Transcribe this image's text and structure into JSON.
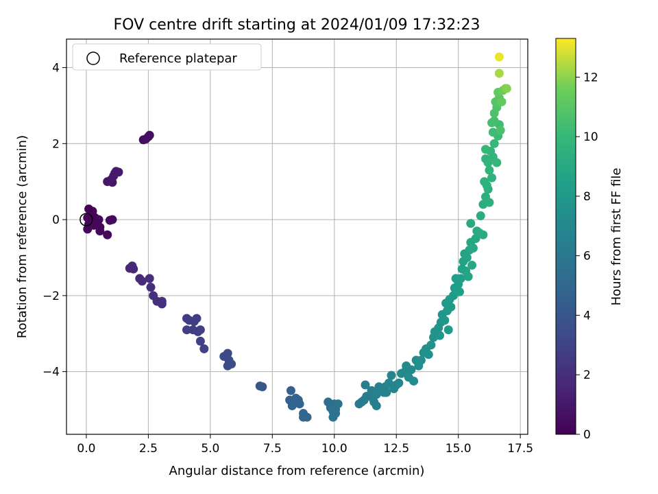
{
  "chart_data": {
    "type": "scatter",
    "title": "FOV centre drift starting at 2024/01/09 17:32:23",
    "xlabel": "Angular distance from reference (arcmin)",
    "ylabel": "Rotation from reference (arcmin)",
    "xlim": [
      -0.8,
      17.8
    ],
    "ylim": [
      -5.65,
      4.75
    ],
    "xticks": [
      0.0,
      2.5,
      5.0,
      7.5,
      10.0,
      12.5,
      15.0,
      17.5
    ],
    "xtick_labels": [
      "0.0",
      "2.5",
      "5.0",
      "7.5",
      "10.0",
      "12.5",
      "15.0",
      "17.5"
    ],
    "yticks": [
      -4,
      -2,
      0,
      2,
      4
    ],
    "ytick_labels": [
      "−4",
      "−2",
      "0",
      "2",
      "4"
    ],
    "grid": true,
    "legend": {
      "placement": "top-left",
      "entries": [
        "Reference platepar"
      ]
    },
    "reference_point": {
      "x": 0.0,
      "y": 0.0
    },
    "colorbar": {
      "label": "Hours from first FF file",
      "range": [
        0,
        13.3
      ],
      "ticks": [
        0,
        2,
        4,
        6,
        8,
        10,
        12
      ],
      "tick_labels": [
        "0",
        "2",
        "4",
        "6",
        "8",
        "10",
        "12"
      ],
      "colormap": "viridis"
    },
    "points": [
      {
        "x": 0.1,
        "y": 0.28,
        "c": 0.05
      },
      {
        "x": 0.25,
        "y": 0.22,
        "c": 0.08
      },
      {
        "x": 0.05,
        "y": 0.05,
        "c": 0.1
      },
      {
        "x": 0.2,
        "y": 0.0,
        "c": 0.12
      },
      {
        "x": 0.35,
        "y": 0.05,
        "c": 0.15
      },
      {
        "x": 0.45,
        "y": -0.02,
        "c": 0.18
      },
      {
        "x": 0.1,
        "y": -0.12,
        "c": 0.2
      },
      {
        "x": 0.05,
        "y": -0.25,
        "c": 0.22
      },
      {
        "x": 0.3,
        "y": -0.15,
        "c": 0.25
      },
      {
        "x": 0.5,
        "y": 0.0,
        "c": 0.28
      },
      {
        "x": 0.55,
        "y": -0.2,
        "c": 0.3
      },
      {
        "x": 0.55,
        "y": -0.3,
        "c": 0.32
      },
      {
        "x": 0.85,
        "y": -0.4,
        "c": 0.35
      },
      {
        "x": 0.95,
        "y": -0.02,
        "c": 0.38
      },
      {
        "x": 1.05,
        "y": 0.0,
        "c": 0.4
      },
      {
        "x": 2.3,
        "y": 2.1,
        "c": 0.5
      },
      {
        "x": 2.4,
        "y": 2.12,
        "c": 0.55
      },
      {
        "x": 2.5,
        "y": 2.18,
        "c": 0.6
      },
      {
        "x": 2.55,
        "y": 2.22,
        "c": 0.62
      },
      {
        "x": 0.85,
        "y": 1.0,
        "c": 0.9
      },
      {
        "x": 1.0,
        "y": 1.05,
        "c": 0.95
      },
      {
        "x": 1.05,
        "y": 0.98,
        "c": 1.0
      },
      {
        "x": 1.1,
        "y": 1.15,
        "c": 1.05
      },
      {
        "x": 1.2,
        "y": 1.27,
        "c": 1.1
      },
      {
        "x": 1.3,
        "y": 1.25,
        "c": 1.15
      },
      {
        "x": 1.15,
        "y": 1.22,
        "c": 1.12
      },
      {
        "x": 1.75,
        "y": -1.28,
        "c": 1.6
      },
      {
        "x": 1.85,
        "y": -1.22,
        "c": 1.65
      },
      {
        "x": 1.9,
        "y": -1.3,
        "c": 1.7
      },
      {
        "x": 2.15,
        "y": -1.55,
        "c": 1.8
      },
      {
        "x": 2.25,
        "y": -1.62,
        "c": 1.85
      },
      {
        "x": 2.55,
        "y": -1.55,
        "c": 1.9
      },
      {
        "x": 2.6,
        "y": -1.78,
        "c": 1.95
      },
      {
        "x": 2.7,
        "y": -2.0,
        "c": 2.0
      },
      {
        "x": 2.85,
        "y": -2.15,
        "c": 2.05
      },
      {
        "x": 3.05,
        "y": -2.15,
        "c": 2.1
      },
      {
        "x": 3.05,
        "y": -2.22,
        "c": 2.12
      },
      {
        "x": 4.05,
        "y": -2.6,
        "c": 2.6
      },
      {
        "x": 4.15,
        "y": -2.65,
        "c": 2.65
      },
      {
        "x": 4.35,
        "y": -2.68,
        "c": 2.7
      },
      {
        "x": 4.45,
        "y": -2.6,
        "c": 2.72
      },
      {
        "x": 4.05,
        "y": -2.9,
        "c": 2.75
      },
      {
        "x": 4.3,
        "y": -2.9,
        "c": 2.8
      },
      {
        "x": 4.5,
        "y": -2.95,
        "c": 2.82
      },
      {
        "x": 4.6,
        "y": -2.9,
        "c": 2.85
      },
      {
        "x": 4.6,
        "y": -3.2,
        "c": 2.9
      },
      {
        "x": 4.75,
        "y": -3.4,
        "c": 2.95
      },
      {
        "x": 5.55,
        "y": -3.6,
        "c": 3.3
      },
      {
        "x": 5.7,
        "y": -3.52,
        "c": 3.35
      },
      {
        "x": 5.75,
        "y": -3.7,
        "c": 3.4
      },
      {
        "x": 5.7,
        "y": -3.85,
        "c": 3.42
      },
      {
        "x": 5.85,
        "y": -3.8,
        "c": 3.45
      },
      {
        "x": 7.0,
        "y": -4.38,
        "c": 4.0
      },
      {
        "x": 7.1,
        "y": -4.4,
        "c": 4.05
      },
      {
        "x": 8.25,
        "y": -4.5,
        "c": 4.6
      },
      {
        "x": 8.2,
        "y": -4.75,
        "c": 4.65
      },
      {
        "x": 8.3,
        "y": -4.9,
        "c": 4.7
      },
      {
        "x": 8.45,
        "y": -4.7,
        "c": 4.75
      },
      {
        "x": 8.55,
        "y": -4.75,
        "c": 4.8
      },
      {
        "x": 8.6,
        "y": -4.85,
        "c": 4.82
      },
      {
        "x": 8.75,
        "y": -5.1,
        "c": 4.9
      },
      {
        "x": 8.9,
        "y": -5.2,
        "c": 4.95
      },
      {
        "x": 8.75,
        "y": -5.2,
        "c": 4.92
      },
      {
        "x": 9.75,
        "y": -4.8,
        "c": 5.4
      },
      {
        "x": 9.85,
        "y": -4.95,
        "c": 5.45
      },
      {
        "x": 9.95,
        "y": -5.05,
        "c": 5.5
      },
      {
        "x": 10.0,
        "y": -4.85,
        "c": 5.52
      },
      {
        "x": 10.05,
        "y": -5.0,
        "c": 5.55
      },
      {
        "x": 10.15,
        "y": -4.85,
        "c": 5.6
      },
      {
        "x": 9.95,
        "y": -5.2,
        "c": 5.62
      },
      {
        "x": 10.05,
        "y": -5.1,
        "c": 5.65
      },
      {
        "x": 11.0,
        "y": -4.85,
        "c": 6.1
      },
      {
        "x": 11.1,
        "y": -4.8,
        "c": 6.15
      },
      {
        "x": 11.2,
        "y": -4.75,
        "c": 6.2
      },
      {
        "x": 11.3,
        "y": -4.65,
        "c": 6.25
      },
      {
        "x": 11.25,
        "y": -4.35,
        "c": 6.3
      },
      {
        "x": 11.5,
        "y": -4.5,
        "c": 6.35
      },
      {
        "x": 11.55,
        "y": -4.7,
        "c": 6.4
      },
      {
        "x": 11.6,
        "y": -4.8,
        "c": 6.42
      },
      {
        "x": 11.7,
        "y": -4.9,
        "c": 6.45
      },
      {
        "x": 11.7,
        "y": -4.6,
        "c": 6.5
      },
      {
        "x": 11.8,
        "y": -4.4,
        "c": 6.55
      },
      {
        "x": 11.9,
        "y": -4.5,
        "c": 6.6
      },
      {
        "x": 12.0,
        "y": -4.55,
        "c": 6.65
      },
      {
        "x": 12.05,
        "y": -4.4,
        "c": 6.7
      },
      {
        "x": 12.1,
        "y": -4.55,
        "c": 6.72
      },
      {
        "x": 12.2,
        "y": -4.3,
        "c": 6.75
      },
      {
        "x": 12.3,
        "y": -4.1,
        "c": 6.8
      },
      {
        "x": 12.4,
        "y": -4.45,
        "c": 6.85
      },
      {
        "x": 12.5,
        "y": -4.35,
        "c": 6.9
      },
      {
        "x": 12.6,
        "y": -4.3,
        "c": 6.95
      },
      {
        "x": 12.7,
        "y": -4.05,
        "c": 7.0
      },
      {
        "x": 12.85,
        "y": -4.0,
        "c": 7.05
      },
      {
        "x": 12.9,
        "y": -3.85,
        "c": 7.1
      },
      {
        "x": 13.0,
        "y": -4.15,
        "c": 7.15
      },
      {
        "x": 13.1,
        "y": -3.95,
        "c": 7.2
      },
      {
        "x": 13.2,
        "y": -4.25,
        "c": 7.25
      },
      {
        "x": 13.3,
        "y": -3.7,
        "c": 7.3
      },
      {
        "x": 13.4,
        "y": -3.85,
        "c": 7.35
      },
      {
        "x": 13.5,
        "y": -3.7,
        "c": 7.4
      },
      {
        "x": 13.6,
        "y": -3.5,
        "c": 7.45
      },
      {
        "x": 13.7,
        "y": -3.4,
        "c": 7.5
      },
      {
        "x": 13.8,
        "y": -3.55,
        "c": 7.55
      },
      {
        "x": 13.9,
        "y": -3.3,
        "c": 7.6
      },
      {
        "x": 14.0,
        "y": -3.1,
        "c": 7.65
      },
      {
        "x": 14.05,
        "y": -2.95,
        "c": 7.7
      },
      {
        "x": 14.15,
        "y": -3.0,
        "c": 7.72
      },
      {
        "x": 14.2,
        "y": -2.85,
        "c": 7.75
      },
      {
        "x": 14.3,
        "y": -2.7,
        "c": 7.8
      },
      {
        "x": 14.25,
        "y": -3.05,
        "c": 7.82
      },
      {
        "x": 14.35,
        "y": -2.5,
        "c": 7.85
      },
      {
        "x": 14.45,
        "y": -2.65,
        "c": 7.9
      },
      {
        "x": 14.5,
        "y": -2.2,
        "c": 7.95
      },
      {
        "x": 14.55,
        "y": -2.4,
        "c": 8.0
      },
      {
        "x": 14.6,
        "y": -2.9,
        "c": 8.05
      },
      {
        "x": 14.65,
        "y": -2.1,
        "c": 8.1
      },
      {
        "x": 14.7,
        "y": -2.3,
        "c": 8.15
      },
      {
        "x": 14.8,
        "y": -2.0,
        "c": 8.2
      },
      {
        "x": 14.85,
        "y": -1.8,
        "c": 8.25
      },
      {
        "x": 14.9,
        "y": -1.55,
        "c": 8.3
      },
      {
        "x": 15.0,
        "y": -1.7,
        "c": 8.35
      },
      {
        "x": 15.05,
        "y": -1.9,
        "c": 8.4
      },
      {
        "x": 15.1,
        "y": -1.55,
        "c": 8.45
      },
      {
        "x": 15.15,
        "y": -1.3,
        "c": 8.5
      },
      {
        "x": 15.2,
        "y": -1.1,
        "c": 8.55
      },
      {
        "x": 15.25,
        "y": -0.9,
        "c": 8.6
      },
      {
        "x": 15.3,
        "y": -1.35,
        "c": 8.65
      },
      {
        "x": 15.35,
        "y": -1.0,
        "c": 8.7
      },
      {
        "x": 15.4,
        "y": -1.5,
        "c": 8.75
      },
      {
        "x": 15.45,
        "y": -0.8,
        "c": 8.8
      },
      {
        "x": 15.5,
        "y": -0.6,
        "c": 8.85
      },
      {
        "x": 15.55,
        "y": -1.2,
        "c": 8.9
      },
      {
        "x": 15.6,
        "y": -0.75,
        "c": 8.95
      },
      {
        "x": 15.7,
        "y": -0.5,
        "c": 9.0
      },
      {
        "x": 15.75,
        "y": -0.3,
        "c": 9.05
      },
      {
        "x": 15.5,
        "y": -0.1,
        "c": 9.1
      },
      {
        "x": 15.85,
        "y": -0.35,
        "c": 9.15
      },
      {
        "x": 15.9,
        "y": 0.1,
        "c": 9.2
      },
      {
        "x": 16.0,
        "y": -0.4,
        "c": 9.25
      },
      {
        "x": 16.0,
        "y": 0.4,
        "c": 9.3
      },
      {
        "x": 16.1,
        "y": 0.6,
        "c": 9.35
      },
      {
        "x": 16.2,
        "y": 0.8,
        "c": 9.4
      },
      {
        "x": 16.25,
        "y": 0.45,
        "c": 9.45
      },
      {
        "x": 16.05,
        "y": 1.0,
        "c": 9.5
      },
      {
        "x": 16.15,
        "y": 0.9,
        "c": 9.55
      },
      {
        "x": 16.35,
        "y": 1.1,
        "c": 9.6
      },
      {
        "x": 16.25,
        "y": 1.3,
        "c": 9.65
      },
      {
        "x": 16.1,
        "y": 1.6,
        "c": 9.7
      },
      {
        "x": 16.2,
        "y": 1.5,
        "c": 9.75
      },
      {
        "x": 16.3,
        "y": 1.8,
        "c": 9.8
      },
      {
        "x": 16.4,
        "y": 1.65,
        "c": 9.85
      },
      {
        "x": 16.55,
        "y": 1.5,
        "c": 9.9
      },
      {
        "x": 16.1,
        "y": 1.85,
        "c": 9.95
      },
      {
        "x": 16.45,
        "y": 2.0,
        "c": 10.0
      },
      {
        "x": 16.6,
        "y": 2.2,
        "c": 10.1
      },
      {
        "x": 16.4,
        "y": 2.3,
        "c": 10.2
      },
      {
        "x": 16.65,
        "y": 2.5,
        "c": 10.3
      },
      {
        "x": 16.45,
        "y": 2.6,
        "c": 10.4
      },
      {
        "x": 16.35,
        "y": 2.55,
        "c": 10.5
      },
      {
        "x": 16.7,
        "y": 2.35,
        "c": 10.6
      },
      {
        "x": 16.45,
        "y": 2.8,
        "c": 10.7
      },
      {
        "x": 16.55,
        "y": 2.95,
        "c": 10.8
      },
      {
        "x": 16.5,
        "y": 3.1,
        "c": 10.9
      },
      {
        "x": 16.65,
        "y": 3.2,
        "c": 11.0
      },
      {
        "x": 16.6,
        "y": 3.35,
        "c": 11.2
      },
      {
        "x": 16.75,
        "y": 3.1,
        "c": 11.3
      },
      {
        "x": 16.8,
        "y": 3.4,
        "c": 11.5
      },
      {
        "x": 16.9,
        "y": 3.45,
        "c": 11.7
      },
      {
        "x": 16.95,
        "y": 3.45,
        "c": 11.9
      },
      {
        "x": 16.65,
        "y": 3.85,
        "c": 12.3
      },
      {
        "x": 16.65,
        "y": 4.28,
        "c": 13.1
      }
    ]
  }
}
